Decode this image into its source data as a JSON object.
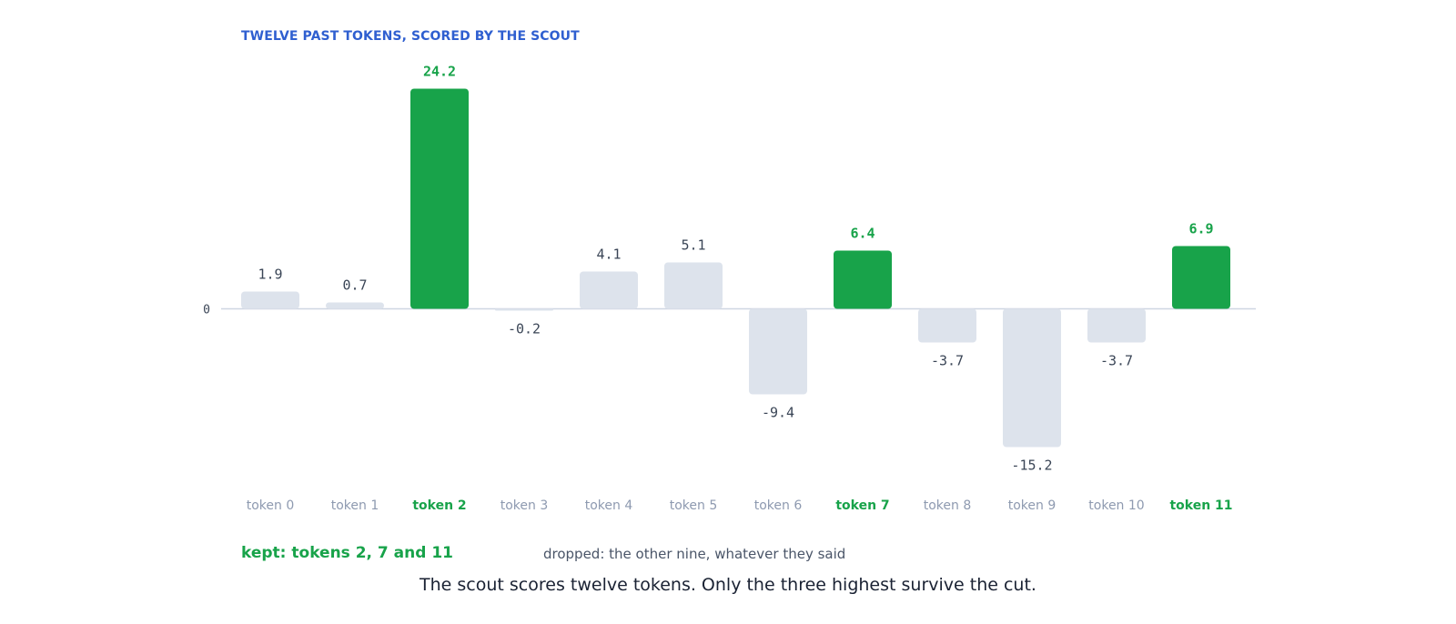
{
  "chart_data": {
    "type": "bar",
    "title": "TWELVE PAST TOKENS, SCORED BY THE SCOUT",
    "categories": [
      "token 0",
      "token 1",
      "token 2",
      "token 3",
      "token 4",
      "token 5",
      "token 6",
      "token 7",
      "token 8",
      "token 9",
      "token 10",
      "token 11"
    ],
    "values": [
      1.9,
      0.7,
      24.2,
      -0.2,
      4.1,
      5.1,
      -9.4,
      6.4,
      -3.7,
      -15.2,
      -3.7,
      6.9
    ],
    "value_labels": [
      "1.9",
      "0.7",
      "24.2",
      "-0.2",
      "4.1",
      "5.1",
      "-9.4",
      "6.4",
      "-3.7",
      "-15.2",
      "-3.7",
      "6.9"
    ],
    "kept": [
      false,
      false,
      true,
      false,
      false,
      false,
      false,
      true,
      false,
      false,
      false,
      true
    ],
    "y_ticks": [
      {
        "value": 0,
        "label": "0"
      }
    ],
    "ylim": [
      -20,
      26
    ],
    "grid": false,
    "legend": "none",
    "colors": {
      "kept": "#18a34a",
      "dropped": "#dde3ec",
      "baseline": "#cfd6e2",
      "title": "#2f5fd0"
    }
  },
  "notes": {
    "kept": "kept: tokens 2, 7 and 11",
    "dropped": "dropped: the other nine, whatever they said"
  },
  "caption": "The scout scores twelve tokens. Only the three highest survive the cut."
}
